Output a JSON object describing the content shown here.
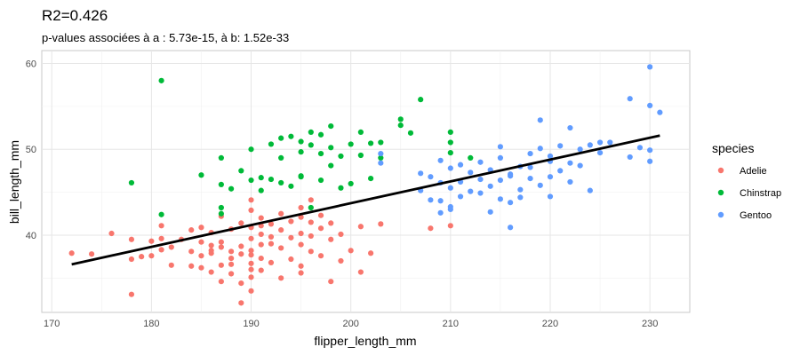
{
  "chart_data": {
    "type": "scatter",
    "title": "R2=0.426",
    "subtitle": "p-values associées à a : 5.73e-15, à b: 1.52e-33",
    "xlabel": "flipper_length_mm",
    "ylabel": "bill_length_mm",
    "xlim": [
      169,
      234
    ],
    "ylim": [
      31,
      61.5
    ],
    "xticks": [
      "170",
      "180",
      "190",
      "200",
      "210",
      "220",
      "230"
    ],
    "yticks": [
      "40",
      "50",
      "60"
    ],
    "grid": true,
    "legend": {
      "title": "species",
      "position": "right"
    },
    "regression_line": {
      "x": [
        172,
        231
      ],
      "y": [
        36.6,
        51.6
      ],
      "color": "#000000"
    },
    "series": [
      {
        "name": "Adelie",
        "color": "#F8766D",
        "points": [
          [
            172,
            37.9
          ],
          [
            174,
            37.8
          ],
          [
            176,
            40.2
          ],
          [
            178,
            33.1
          ],
          [
            178,
            37.2
          ],
          [
            178,
            39.5
          ],
          [
            179,
            37.5
          ],
          [
            180,
            39.3
          ],
          [
            180,
            37.6
          ],
          [
            181,
            41.1
          ],
          [
            181,
            39.6
          ],
          [
            181,
            38.3
          ],
          [
            182,
            38.6
          ],
          [
            182,
            36.5
          ],
          [
            183,
            39.5
          ],
          [
            184,
            40.6
          ],
          [
            184,
            36.4
          ],
          [
            184,
            38.1
          ],
          [
            185,
            40.9
          ],
          [
            185,
            37.6
          ],
          [
            185,
            36.2
          ],
          [
            185,
            39.2
          ],
          [
            186,
            38.8
          ],
          [
            186,
            38.2
          ],
          [
            186,
            37.9
          ],
          [
            186,
            40.3
          ],
          [
            186,
            35.7
          ],
          [
            187,
            34.6
          ],
          [
            187,
            39.2
          ],
          [
            187,
            36.5
          ],
          [
            187,
            38.6
          ],
          [
            187,
            42.2
          ],
          [
            188,
            35.5
          ],
          [
            188,
            38.1
          ],
          [
            188,
            40.7
          ],
          [
            188,
            37.3
          ],
          [
            188,
            36.6
          ],
          [
            189,
            37.8
          ],
          [
            189,
            34.4
          ],
          [
            189,
            41.4
          ],
          [
            189,
            32.1
          ],
          [
            189,
            38.7
          ],
          [
            190,
            35.1
          ],
          [
            190,
            39.6
          ],
          [
            190,
            40.9
          ],
          [
            190,
            36.7
          ],
          [
            190,
            37.7
          ],
          [
            190,
            42.9
          ],
          [
            190,
            38.2
          ],
          [
            190,
            33.5
          ],
          [
            190,
            36.0
          ],
          [
            190,
            44.1
          ],
          [
            191,
            41.1
          ],
          [
            191,
            35.9
          ],
          [
            191,
            37.3
          ],
          [
            191,
            40.1
          ],
          [
            191,
            38.9
          ],
          [
            191,
            42.0
          ],
          [
            192,
            39.8
          ],
          [
            192,
            36.8
          ],
          [
            192,
            41.3
          ],
          [
            192,
            39.0
          ],
          [
            193,
            35.0
          ],
          [
            193,
            40.6
          ],
          [
            193,
            38.5
          ],
          [
            193,
            42.5
          ],
          [
            194,
            39.7
          ],
          [
            194,
            37.2
          ],
          [
            194,
            41.6
          ],
          [
            195,
            36.4
          ],
          [
            195,
            38.9
          ],
          [
            195,
            40.2
          ],
          [
            195,
            42.1
          ],
          [
            195,
            43.2
          ],
          [
            195,
            35.6
          ],
          [
            196,
            38.1
          ],
          [
            196,
            39.9
          ],
          [
            196,
            41.5
          ],
          [
            196,
            44.1
          ],
          [
            197,
            40.8
          ],
          [
            197,
            37.6
          ],
          [
            197,
            42.3
          ],
          [
            198,
            34.6
          ],
          [
            198,
            39.5
          ],
          [
            198,
            41.4
          ],
          [
            199,
            37.0
          ],
          [
            199,
            40.1
          ],
          [
            200,
            38.2
          ],
          [
            201,
            41.0
          ],
          [
            201,
            35.7
          ],
          [
            202,
            37.9
          ],
          [
            203,
            41.3
          ],
          [
            208,
            40.8
          ],
          [
            210,
            41.1
          ]
        ]
      },
      {
        "name": "Chinstrap",
        "color": "#00BA38",
        "points": [
          [
            178,
            46.1
          ],
          [
            181,
            58.0
          ],
          [
            181,
            42.4
          ],
          [
            185,
            47.0
          ],
          [
            187,
            49.0
          ],
          [
            187,
            45.9
          ],
          [
            187,
            43.2
          ],
          [
            187,
            42.5
          ],
          [
            188,
            45.4
          ],
          [
            189,
            47.5
          ],
          [
            190,
            46.4
          ],
          [
            190,
            50.0
          ],
          [
            191,
            46.7
          ],
          [
            191,
            45.2
          ],
          [
            192,
            46.5
          ],
          [
            192,
            50.6
          ],
          [
            193,
            51.3
          ],
          [
            193,
            46.1
          ],
          [
            193,
            49.0
          ],
          [
            194,
            51.5
          ],
          [
            194,
            45.7
          ],
          [
            195,
            46.9
          ],
          [
            195,
            50.9
          ],
          [
            195,
            49.7
          ],
          [
            195,
            46.8
          ],
          [
            196,
            52.0
          ],
          [
            196,
            50.5
          ],
          [
            196,
            43.2
          ],
          [
            197,
            49.5
          ],
          [
            197,
            51.7
          ],
          [
            197,
            46.4
          ],
          [
            198,
            52.7
          ],
          [
            198,
            50.2
          ],
          [
            198,
            48.1
          ],
          [
            199,
            49.2
          ],
          [
            199,
            45.5
          ],
          [
            200,
            50.6
          ],
          [
            200,
            46.0
          ],
          [
            201,
            52.0
          ],
          [
            201,
            49.3
          ],
          [
            202,
            50.7
          ],
          [
            202,
            46.6
          ],
          [
            203,
            50.8
          ],
          [
            203,
            49.0
          ],
          [
            205,
            53.5
          ],
          [
            205,
            52.8
          ],
          [
            206,
            51.9
          ],
          [
            207,
            55.8
          ],
          [
            210,
            52.0
          ],
          [
            210,
            50.8
          ],
          [
            210,
            49.6
          ],
          [
            212,
            49.0
          ]
        ]
      },
      {
        "name": "Gentoo",
        "color": "#619CFF",
        "points": [
          [
            203,
            49.5
          ],
          [
            203,
            48.4
          ],
          [
            207,
            47.2
          ],
          [
            207,
            45.2
          ],
          [
            208,
            44.1
          ],
          [
            208,
            46.8
          ],
          [
            209,
            48.7
          ],
          [
            209,
            44.0
          ],
          [
            209,
            42.6
          ],
          [
            209,
            46.1
          ],
          [
            210,
            43.3
          ],
          [
            210,
            45.5
          ],
          [
            210,
            47.8
          ],
          [
            210,
            43.0
          ],
          [
            211,
            46.2
          ],
          [
            211,
            44.5
          ],
          [
            211,
            48.2
          ],
          [
            212,
            45.1
          ],
          [
            212,
            47.3
          ],
          [
            213,
            48.5
          ],
          [
            213,
            44.9
          ],
          [
            213,
            46.5
          ],
          [
            214,
            47.6
          ],
          [
            214,
            42.7
          ],
          [
            214,
            45.7
          ],
          [
            215,
            49.0
          ],
          [
            215,
            46.4
          ],
          [
            215,
            44.2
          ],
          [
            215,
            50.3
          ],
          [
            216,
            47.1
          ],
          [
            216,
            43.8
          ],
          [
            216,
            40.9
          ],
          [
            216,
            46.9
          ],
          [
            217,
            48.0
          ],
          [
            217,
            45.3
          ],
          [
            217,
            44.4
          ],
          [
            218,
            49.5
          ],
          [
            218,
            46.6
          ],
          [
            218,
            47.9
          ],
          [
            219,
            50.1
          ],
          [
            219,
            45.8
          ],
          [
            219,
            53.4
          ],
          [
            220,
            48.6
          ],
          [
            220,
            46.8
          ],
          [
            220,
            44.5
          ],
          [
            220,
            49.2
          ],
          [
            221,
            50.4
          ],
          [
            221,
            47.5
          ],
          [
            222,
            52.5
          ],
          [
            222,
            48.4
          ],
          [
            222,
            46.2
          ],
          [
            223,
            50.0
          ],
          [
            223,
            48.1
          ],
          [
            224,
            50.5
          ],
          [
            224,
            45.2
          ],
          [
            225,
            50.8
          ],
          [
            225,
            49.6
          ],
          [
            226,
            50.8
          ],
          [
            228,
            55.9
          ],
          [
            228,
            49.1
          ],
          [
            229,
            50.2
          ],
          [
            230,
            59.6
          ],
          [
            230,
            55.1
          ],
          [
            230,
            49.9
          ],
          [
            230,
            48.6
          ],
          [
            231,
            54.3
          ]
        ]
      }
    ]
  }
}
